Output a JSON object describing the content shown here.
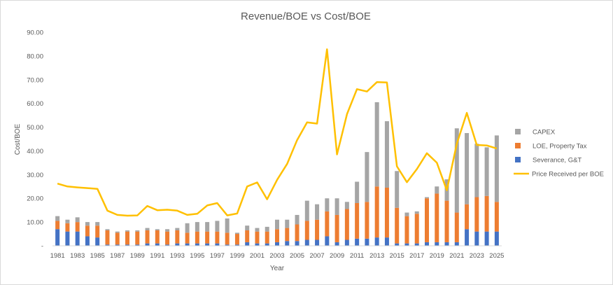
{
  "chart_data": {
    "type": "bar",
    "title": "Revenue/BOE vs Cost/BOE",
    "xlabel": "Year",
    "ylabel": "Cost/BOE",
    "ylim": [
      0,
      90
    ],
    "ytick_labels": [
      "-",
      "10.00",
      "20.00",
      "30.00",
      "40.00",
      "50.00",
      "60.00",
      "70.00",
      "80.00",
      "90.00"
    ],
    "categories": [
      "1981",
      "1982",
      "1983",
      "1984",
      "1985",
      "1986",
      "1987",
      "1988",
      "1989",
      "1990",
      "1991",
      "1992",
      "1993",
      "1994",
      "1995",
      "1996",
      "1997",
      "1998",
      "1999",
      "2000",
      "2001",
      "2002",
      "2003",
      "2004",
      "2005",
      "2006",
      "2007",
      "2008",
      "2009",
      "2010",
      "2011",
      "2012",
      "2013",
      "2014",
      "2015",
      "2016",
      "2017",
      "2018",
      "2019",
      "2020",
      "2021",
      "2022",
      "2023",
      "2024",
      "2025"
    ],
    "xtick_labels": [
      "1981",
      "1983",
      "1985",
      "1987",
      "1989",
      "1991",
      "1993",
      "1995",
      "1997",
      "1999",
      "2001",
      "2003",
      "2005",
      "2007",
      "2009",
      "2011",
      "2013",
      "2015",
      "2017",
      "2019",
      "2021",
      "2023",
      "2025"
    ],
    "grid": false,
    "legend_position": "right",
    "series": [
      {
        "name": "CAPEX",
        "kind": "stacked-bar",
        "color": "#a5a5a5",
        "values": [
          2.0,
          1.5,
          2.0,
          1.5,
          1.5,
          0.5,
          0.5,
          0.5,
          0.5,
          1.0,
          0.5,
          1.0,
          1.0,
          4.0,
          4.0,
          4.0,
          4.5,
          6.0,
          0.5,
          2.0,
          1.5,
          2.0,
          4.0,
          3.5,
          4.0,
          8.5,
          6.5,
          5.5,
          7.0,
          3.0,
          9.0,
          21.0,
          35.5,
          28.0,
          15.5,
          1.5,
          1.0,
          0.5,
          3.0,
          9.0,
          35.5,
          30.0,
          22.5,
          20.5,
          28.0
        ]
      },
      {
        "name": "LOE, Property Tax",
        "kind": "stacked-bar",
        "color": "#ed7d31",
        "values": [
          3.5,
          3.5,
          4.0,
          4.5,
          5.0,
          6.0,
          5.0,
          5.5,
          5.5,
          5.5,
          5.5,
          5.5,
          5.5,
          4.5,
          5.0,
          5.0,
          5.0,
          5.0,
          4.5,
          5.0,
          5.0,
          5.0,
          5.5,
          5.5,
          7.0,
          8.0,
          8.5,
          10.5,
          11.5,
          13.0,
          15.0,
          15.5,
          21.5,
          21.0,
          15.0,
          11.5,
          12.5,
          18.5,
          20.5,
          17.5,
          12.5,
          10.5,
          14.5,
          15.0,
          12.5
        ]
      },
      {
        "name": "Severance, G&T",
        "kind": "stacked-bar",
        "color": "#4472c4",
        "values": [
          7.0,
          6.0,
          6.0,
          4.0,
          3.5,
          0.5,
          0.5,
          0.5,
          0.5,
          1.0,
          1.0,
          0.5,
          1.0,
          1.0,
          1.0,
          1.0,
          1.0,
          0.5,
          0.5,
          1.5,
          1.0,
          1.0,
          1.5,
          2.0,
          2.0,
          2.5,
          2.5,
          4.0,
          1.5,
          2.5,
          3.0,
          3.0,
          3.5,
          3.5,
          1.0,
          1.0,
          1.0,
          1.5,
          1.5,
          1.5,
          1.5,
          7.0,
          6.0,
          6.0,
          6.0
        ]
      },
      {
        "name": "Price Received per BOE",
        "kind": "line",
        "color": "#ffc000",
        "values": [
          26.2,
          25.0,
          24.6,
          24.3,
          24.0,
          14.8,
          13.0,
          12.7,
          12.8,
          16.8,
          15.0,
          15.2,
          14.8,
          13.0,
          13.5,
          17.0,
          18.0,
          12.8,
          13.6,
          25.0,
          26.7,
          19.6,
          27.8,
          34.5,
          44.5,
          52.0,
          51.5,
          82.8,
          38.5,
          55.5,
          66.0,
          65.0,
          69.0,
          68.8,
          33.5,
          26.8,
          32.3,
          39.0,
          35.0,
          23.4,
          43.0,
          56.0,
          42.5,
          42.3,
          41.0
        ]
      }
    ]
  }
}
